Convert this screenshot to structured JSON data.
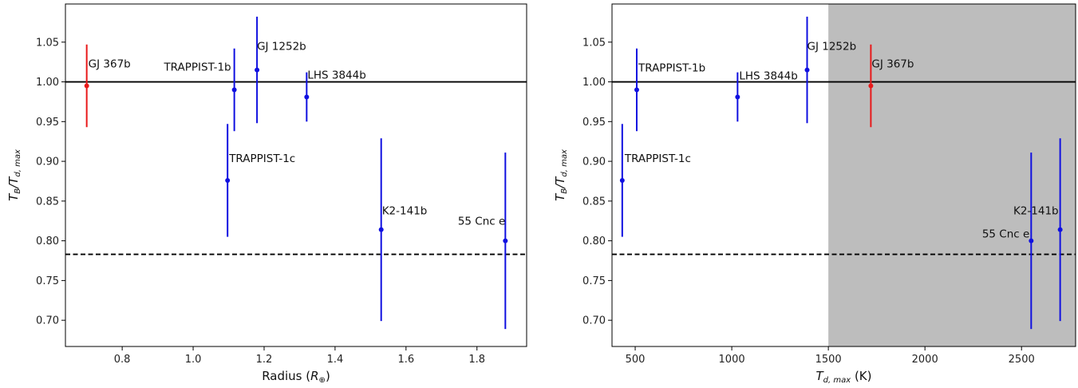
{
  "colors": {
    "red": "#e8191a",
    "blue": "#1010e0",
    "shade": "#bdbdbd",
    "black": "#000000"
  },
  "chart_data": [
    {
      "type": "scatter",
      "error_bars": true,
      "xlabel": {
        "main": "Radius (",
        "math": "R",
        "sub": "⊕",
        "tail": ")"
      },
      "ylabel": {
        "main": "T",
        "sub1": "B",
        "mid": "/T",
        "sub2": "d, max"
      },
      "xlim": [
        0.64,
        1.94
      ],
      "ylim": [
        0.667,
        1.098
      ],
      "xticks": [
        0.8,
        1.0,
        1.2,
        1.4,
        1.6,
        1.8
      ],
      "xtick_labels": [
        "0.8",
        "1.0",
        "1.2",
        "1.4",
        "1.6",
        "1.8"
      ],
      "yticks": [
        0.7,
        0.75,
        0.8,
        0.85,
        0.9,
        0.95,
        1.0,
        1.05
      ],
      "ytick_labels": [
        "0.70",
        "0.75",
        "0.80",
        "0.85",
        "0.90",
        "0.95",
        "1.00",
        "1.05"
      ],
      "hlines": [
        {
          "y": 1.0,
          "style": "solid"
        },
        {
          "y": 0.783,
          "style": "dashed"
        }
      ],
      "points": [
        {
          "name": "GJ 367b",
          "x": 0.7,
          "y": 0.995,
          "err": 0.052,
          "color": "red"
        },
        {
          "name": "TRAPPIST-1b",
          "x": 1.116,
          "y": 0.99,
          "err": 0.052,
          "color": "blue"
        },
        {
          "name": "GJ 1252b",
          "x": 1.18,
          "y": 1.015,
          "err": 0.067,
          "color": "blue"
        },
        {
          "name": "LHS 3844b",
          "x": 1.32,
          "y": 0.981,
          "err": 0.031,
          "color": "blue"
        },
        {
          "name": "TRAPPIST-1c",
          "x": 1.097,
          "y": 0.876,
          "err": 0.071,
          "color": "blue"
        },
        {
          "name": "K2-141b",
          "x": 1.53,
          "y": 0.814,
          "err": 0.115,
          "color": "blue"
        },
        {
          "name": "55 Cnc e",
          "x": 1.88,
          "y": 0.8,
          "err": 0.111,
          "color": "blue"
        }
      ]
    },
    {
      "type": "scatter",
      "error_bars": true,
      "xlabel": {
        "main": "T",
        "sub": "d, max",
        "tail": " (K)"
      },
      "ylabel": {
        "main": "T",
        "sub1": "B",
        "mid": "/T",
        "sub2": "d, max"
      },
      "xlim": [
        380,
        2780
      ],
      "ylim": [
        0.667,
        1.098
      ],
      "shaded_region": {
        "x_from": 1500,
        "x_to": 2780
      },
      "xticks": [
        500,
        1000,
        1500,
        2000,
        2500
      ],
      "xtick_labels": [
        "500",
        "1000",
        "1500",
        "2000",
        "2500"
      ],
      "yticks": [
        0.7,
        0.75,
        0.8,
        0.85,
        0.9,
        0.95,
        1.0,
        1.05
      ],
      "ytick_labels": [
        "0.70",
        "0.75",
        "0.80",
        "0.85",
        "0.90",
        "0.95",
        "1.00",
        "1.05"
      ],
      "hlines": [
        {
          "y": 1.0,
          "style": "solid"
        },
        {
          "y": 0.783,
          "style": "dashed"
        }
      ],
      "points": [
        {
          "name": "TRAPPIST-1b",
          "x": 508,
          "y": 0.99,
          "err": 0.052,
          "color": "blue"
        },
        {
          "name": "TRAPPIST-1c",
          "x": 433,
          "y": 0.876,
          "err": 0.071,
          "color": "blue"
        },
        {
          "name": "LHS 3844b",
          "x": 1030,
          "y": 0.981,
          "err": 0.031,
          "color": "blue"
        },
        {
          "name": "GJ 1252b",
          "x": 1390,
          "y": 1.015,
          "err": 0.067,
          "color": "blue"
        },
        {
          "name": "GJ 367b",
          "x": 1720,
          "y": 0.995,
          "err": 0.052,
          "color": "red"
        },
        {
          "name": "55 Cnc e",
          "x": 2550,
          "y": 0.8,
          "err": 0.111,
          "color": "blue"
        },
        {
          "name": "K2-141b",
          "x": 2700,
          "y": 0.814,
          "err": 0.115,
          "color": "blue"
        }
      ]
    }
  ]
}
